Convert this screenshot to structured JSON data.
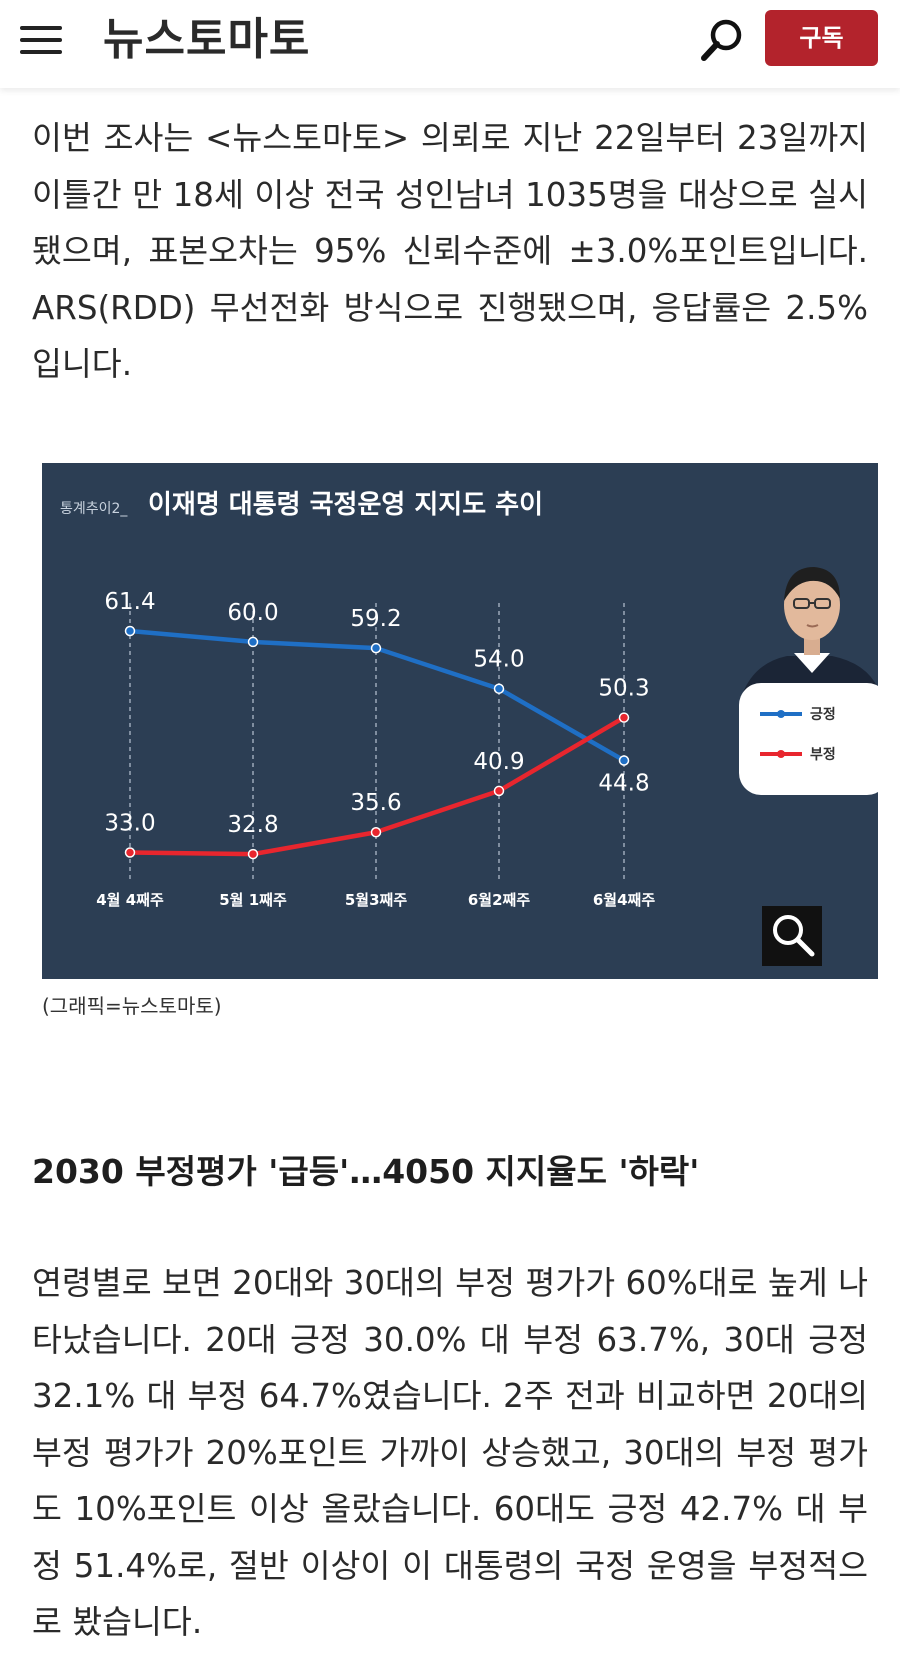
{
  "header": {
    "logo": "뉴스토마토",
    "subscribe_label": "구독",
    "icons": {
      "menu": "hamburger-menu-icon",
      "search": "search-icon"
    }
  },
  "article": {
    "paragraph1": "이번 조사는 <뉴스토마토> 의뢰로 지난 22일부터 23일까지 이틀간 만 18세 이상 전국 성인남녀 1035명을 대상으로 실시됐으며, 표본오차는 95% 신뢰수준에 ±3.0%포인트입니다. ARS(RDD) 무선전화 방식으로 진행됐으며, 응답률은 2.5%입니다.",
    "figure_caption": "(그래픽=뉴스토마토)",
    "subheading": "2030 부정평가 '급등'…4050 지지율도 '하락'",
    "paragraph2": "연령별로 보면 20대와 30대의 부정 평가가 60%대로 높게 나타났습니다. 20대 긍정 30.0% 대 부정 63.7%, 30대 긍정 32.1% 대 부정 64.7%였습니다. 2주 전과 비교하면 20대의 부정 평가가 20%포인트 가까이 상승했고, 30대의 부정 평가도 10%포인트 이상 올랐습니다. 60대도 긍정 42.7% 대 부정 51.4%로, 절반 이상이 이 대통령의 국정 운영을 부정적으로 봤습니다."
  },
  "chart_data": {
    "type": "line",
    "title_prefix": "통계추이2_",
    "title": "이재명 대통령 국정운영 지지도 추이",
    "categories": [
      "4월 4째주",
      "5월 1째주",
      "5월3째주",
      "6월2째주",
      "6월4째주"
    ],
    "series": [
      {
        "name": "긍정",
        "values": [
          61.4,
          60.0,
          59.2,
          54.0,
          44.8
        ],
        "color": "#1f6fc5"
      },
      {
        "name": "부정",
        "values": [
          33.0,
          32.8,
          35.6,
          40.9,
          50.3
        ],
        "color": "#e8262e"
      }
    ],
    "value_labels": {
      "긍정": [
        "61.4",
        "60.0",
        "59.2",
        "54.0",
        "44.8"
      ],
      "부정": [
        "33.0",
        "32.8",
        "35.6",
        "40.9",
        "50.3"
      ]
    },
    "legend_position": "right",
    "grid": false,
    "background": "#2c3e54",
    "portrait": "politician-portrait",
    "zoom_icon": "magnifier-zoom-icon"
  }
}
